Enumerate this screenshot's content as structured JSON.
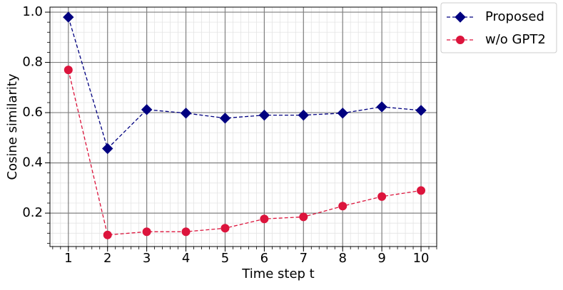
{
  "chart_data": {
    "type": "line",
    "xlabel": "Time step t",
    "ylabel": "Cosine similarity",
    "x": [
      1,
      2,
      3,
      4,
      5,
      6,
      7,
      8,
      9,
      10
    ],
    "series": [
      {
        "name": "Proposed",
        "color": "#000080",
        "marker": "diamond",
        "values": [
          0.98,
          0.457,
          0.612,
          0.598,
          0.578,
          0.59,
          0.59,
          0.598,
          0.623,
          0.609
        ]
      },
      {
        "name": "w/o GPT2",
        "color": "#dc143c",
        "marker": "circle",
        "values": [
          0.77,
          0.113,
          0.126,
          0.126,
          0.14,
          0.177,
          0.185,
          0.228,
          0.266,
          0.29
        ]
      }
    ],
    "xlim": [
      0.53,
      10.4
    ],
    "ylim": [
      0.067,
      1.02
    ],
    "xticks": [
      1,
      2,
      3,
      4,
      5,
      6,
      7,
      8,
      9,
      10
    ],
    "yticks": [
      {
        "value": 0.2,
        "label": "0.2"
      },
      {
        "value": 0.4,
        "label": "0.4"
      },
      {
        "value": 0.6,
        "label": "0.6"
      },
      {
        "value": 0.8,
        "label": "0.8"
      },
      {
        "value": 1.0,
        "label": "1.0"
      }
    ],
    "grid": true,
    "minor_grid": true,
    "legend": "outside upper right"
  }
}
